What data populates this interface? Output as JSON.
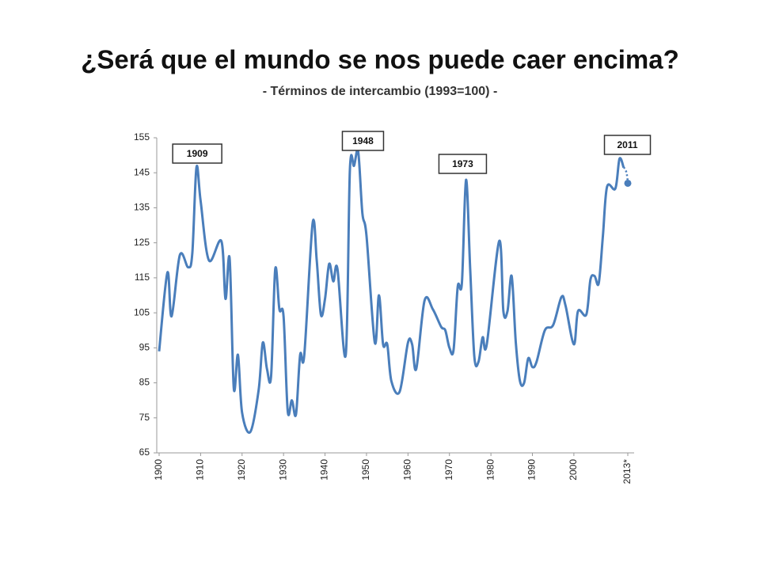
{
  "chart_data": {
    "type": "line",
    "title": "¿Será que el mundo se nos puede caer encima?",
    "subtitle": "- Términos de intercambio (1993=100) -",
    "series": [
      {
        "color": "#4a7ebb",
        "x": [
          1900,
          1902,
          1903,
          1905,
          1907,
          1908,
          1909,
          1910,
          1912,
          1915,
          1916,
          1917,
          1918,
          1919,
          1920,
          1922,
          1924,
          1925,
          1926,
          1927,
          1928,
          1929,
          1930,
          1931,
          1932,
          1933,
          1934,
          1935,
          1937,
          1938,
          1939,
          1940,
          1941,
          1942,
          1943,
          1945,
          1946,
          1947,
          1948,
          1949,
          1950,
          1952,
          1953,
          1954,
          1955,
          1956,
          1958,
          1960,
          1961,
          1962,
          1964,
          1966,
          1968,
          1969,
          1970,
          1971,
          1972,
          1973,
          1974,
          1975,
          1976,
          1977,
          1978,
          1979,
          1982,
          1983,
          1984,
          1985,
          1986,
          1987,
          1988,
          1989,
          1990,
          1991,
          1993,
          1995,
          1997,
          1998,
          2000,
          2001,
          2003,
          2004,
          2005,
          2006,
          2007,
          2008,
          2010,
          2011,
          2012
        ],
        "values": [
          94,
          116.5,
          104,
          121.5,
          118,
          122,
          146.5,
          137,
          120,
          125.5,
          109,
          120.5,
          83.5,
          93,
          76.5,
          71,
          83,
          96.5,
          89,
          87,
          117.5,
          106,
          104,
          77,
          80,
          76,
          93,
          93,
          130.5,
          120,
          104.5,
          109,
          119,
          114,
          117.5,
          93,
          146,
          147,
          151,
          133.5,
          127,
          96.5,
          110,
          96,
          96,
          85.5,
          82.5,
          96.5,
          96,
          89,
          108.5,
          106,
          101,
          100,
          95,
          94.5,
          112.5,
          113.5,
          143,
          117.5,
          92.5,
          91,
          98,
          96,
          125.5,
          105.5,
          105.5,
          115.5,
          96.5,
          85.5,
          85,
          92,
          89.5,
          91,
          100,
          101.5,
          109.5,
          107,
          96,
          105.5,
          104.5,
          114.5,
          115.5,
          113.5,
          127,
          141,
          140.5,
          149,
          146.5
        ]
      },
      {
        "color": "#4a7ebb",
        "dotted": true,
        "x": [
          2013
        ],
        "values": [
          142
        ]
      }
    ],
    "annotations": [
      {
        "text": "1909",
        "x": 1909
      },
      {
        "text": "1948",
        "x": 1948
      },
      {
        "text": "1973",
        "x": 1973
      },
      {
        "text": "2011",
        "x": 2011
      }
    ],
    "xlim": [
      1900,
      2013
    ],
    "xticks": [
      1900,
      1910,
      1920,
      1930,
      1940,
      1950,
      1960,
      1970,
      1980,
      1990,
      2000,
      {
        "value": 2013,
        "label": "2013*"
      }
    ],
    "ylim": [
      65,
      155
    ],
    "yticks": [
      65,
      75,
      85,
      95,
      105,
      115,
      125,
      135,
      145,
      155
    ],
    "grid": false
  }
}
